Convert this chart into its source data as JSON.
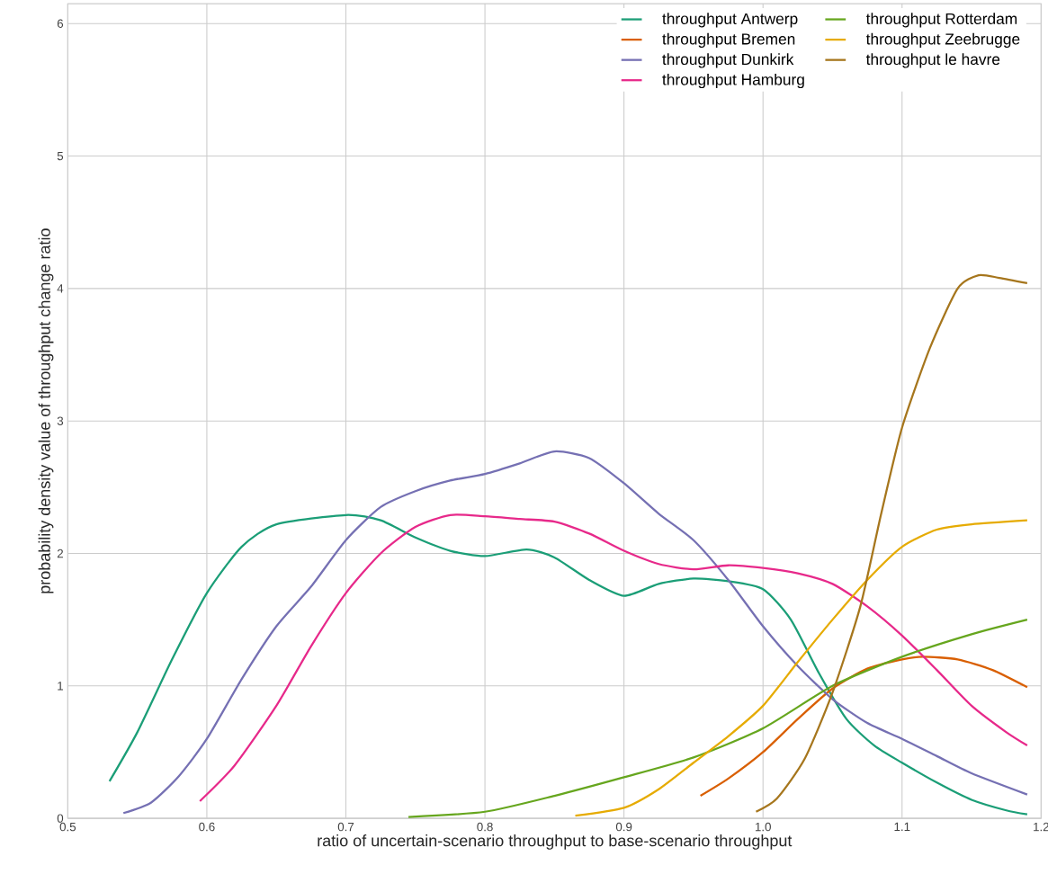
{
  "chart_data": {
    "type": "line",
    "xlabel": "ratio of uncertain-scenario throughput to base-scenario throughput",
    "ylabel": "probability density value of throughput change ratio",
    "xlim": [
      0.5,
      1.2
    ],
    "ylim": [
      0,
      6.15
    ],
    "xticks": [
      0.5,
      0.6,
      0.7,
      0.8,
      0.9,
      {
        "value": 1.0,
        "label": "1.0"
      },
      1.1,
      1.2
    ],
    "yticks": [
      0,
      1,
      2,
      3,
      4,
      5,
      6
    ],
    "grid": true,
    "legend": "top right",
    "series": [
      {
        "name": "throughput Antwerp",
        "color": "#1b9e77",
        "x": [
          0.53,
          0.55,
          0.575,
          0.6,
          0.625,
          0.65,
          0.7,
          0.725,
          0.75,
          0.775,
          0.8,
          0.83,
          0.85,
          0.875,
          0.9,
          0.925,
          0.95,
          0.975,
          1.0,
          1.02,
          1.04,
          1.06,
          1.08,
          1.1,
          1.125,
          1.15,
          1.175,
          1.19
        ],
        "values": [
          0.28,
          0.65,
          1.2,
          1.7,
          2.05,
          2.22,
          2.29,
          2.25,
          2.12,
          2.02,
          1.98,
          2.03,
          1.97,
          1.8,
          1.68,
          1.77,
          1.81,
          1.79,
          1.73,
          1.5,
          1.1,
          0.75,
          0.55,
          0.42,
          0.27,
          0.14,
          0.06,
          0.03
        ]
      },
      {
        "name": "throughput Bremen",
        "color": "#d95f02",
        "x": [
          0.955,
          0.975,
          1.0,
          1.025,
          1.05,
          1.075,
          1.1,
          1.115,
          1.14,
          1.165,
          1.19
        ],
        "values": [
          0.17,
          0.3,
          0.5,
          0.75,
          0.98,
          1.13,
          1.2,
          1.22,
          1.2,
          1.12,
          0.99
        ]
      },
      {
        "name": "throughput Dunkirk",
        "color": "#7570b3",
        "x": [
          0.54,
          0.56,
          0.58,
          0.6,
          0.625,
          0.65,
          0.675,
          0.7,
          0.725,
          0.75,
          0.775,
          0.8,
          0.825,
          0.85,
          0.875,
          0.9,
          0.925,
          0.95,
          0.975,
          1.0,
          1.025,
          1.05,
          1.075,
          1.1,
          1.125,
          1.15,
          1.19
        ],
        "values": [
          0.04,
          0.12,
          0.32,
          0.6,
          1.05,
          1.45,
          1.75,
          2.1,
          2.35,
          2.47,
          2.55,
          2.6,
          2.68,
          2.77,
          2.72,
          2.53,
          2.3,
          2.1,
          1.8,
          1.45,
          1.15,
          0.9,
          0.72,
          0.6,
          0.47,
          0.34,
          0.18
        ]
      },
      {
        "name": "throughput Hamburg",
        "color": "#e7298a",
        "x": [
          0.595,
          0.62,
          0.65,
          0.675,
          0.7,
          0.725,
          0.75,
          0.775,
          0.8,
          0.825,
          0.85,
          0.875,
          0.9,
          0.925,
          0.95,
          0.975,
          1.0,
          1.025,
          1.05,
          1.075,
          1.1,
          1.125,
          1.15,
          1.175,
          1.19
        ],
        "values": [
          0.13,
          0.4,
          0.85,
          1.3,
          1.7,
          2.0,
          2.2,
          2.29,
          2.28,
          2.26,
          2.24,
          2.15,
          2.02,
          1.92,
          1.88,
          1.91,
          1.89,
          1.85,
          1.77,
          1.6,
          1.38,
          1.12,
          0.85,
          0.65,
          0.55
        ]
      },
      {
        "name": "throughput Rotterdam",
        "color": "#66a61e",
        "x": [
          0.745,
          0.8,
          0.85,
          0.9,
          0.95,
          1.0,
          1.05,
          1.1,
          1.15,
          1.19
        ],
        "values": [
          0.01,
          0.05,
          0.17,
          0.31,
          0.46,
          0.68,
          1.0,
          1.22,
          1.39,
          1.5
        ]
      },
      {
        "name": "throughput Zeebrugge",
        "color": "#e6ab02",
        "x": [
          0.865,
          0.9,
          0.925,
          0.95,
          0.975,
          1.0,
          1.025,
          1.05,
          1.075,
          1.1,
          1.125,
          1.15,
          1.19
        ],
        "values": [
          0.02,
          0.08,
          0.22,
          0.42,
          0.62,
          0.85,
          1.18,
          1.5,
          1.8,
          2.05,
          2.18,
          2.22,
          2.25
        ]
      },
      {
        "name": "throughput le havre",
        "color": "#a6761d",
        "x": [
          0.995,
          1.01,
          1.03,
          1.05,
          1.07,
          1.085,
          1.1,
          1.12,
          1.14,
          1.155,
          1.17,
          1.19
        ],
        "values": [
          0.05,
          0.15,
          0.45,
          0.95,
          1.6,
          2.3,
          2.95,
          3.55,
          4.0,
          4.1,
          4.08,
          4.04
        ]
      }
    ]
  }
}
